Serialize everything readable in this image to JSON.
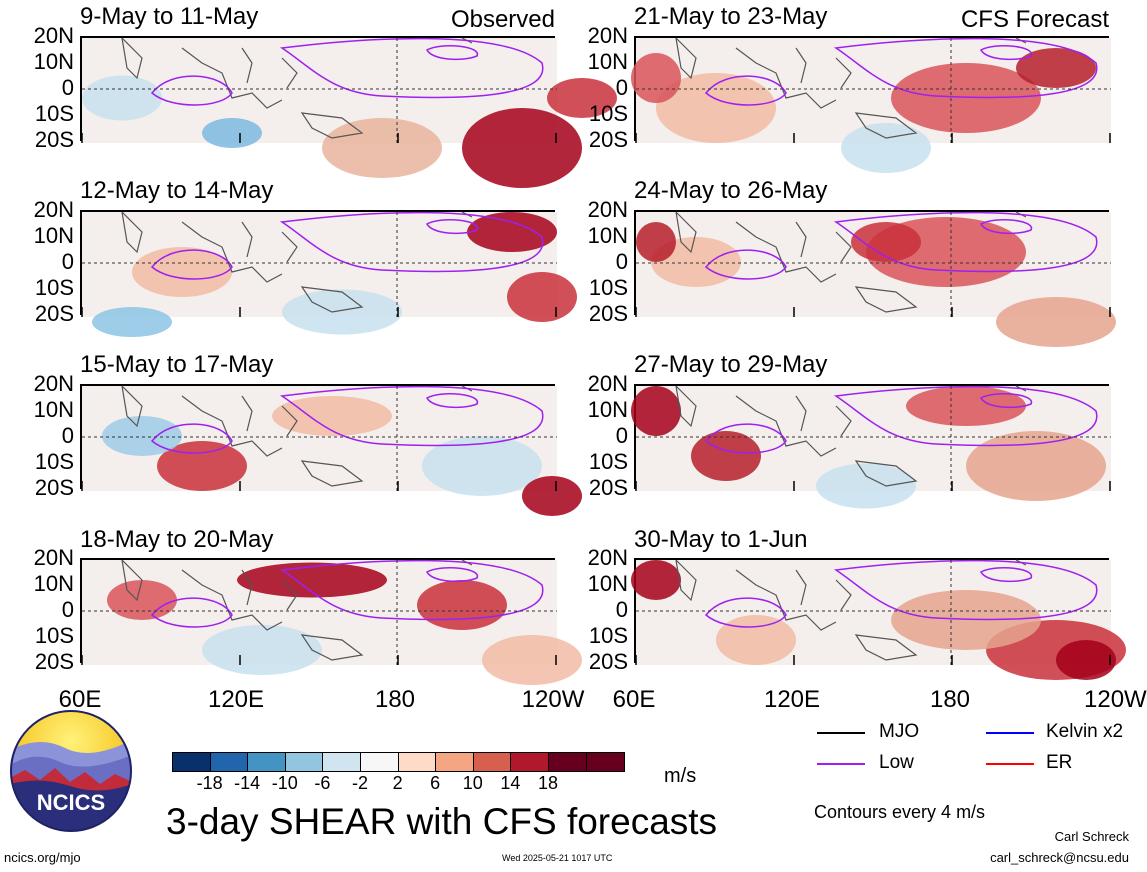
{
  "panels": [
    {
      "title": "9-May to 11-May",
      "tag": "Observed",
      "heat": [
        [
          440,
          110,
          120,
          80,
          "#a5001a"
        ],
        [
          500,
          60,
          70,
          40,
          "#c9303b"
        ],
        [
          150,
          95,
          60,
          30,
          "#7cb8e0"
        ],
        [
          300,
          110,
          120,
          60,
          "#e8b49c"
        ],
        [
          40,
          60,
          80,
          45,
          "#c7e0ef"
        ]
      ]
    },
    {
      "title": "21-May to 23-May",
      "tag": "CFS Forecast",
      "heat": [
        [
          330,
          60,
          150,
          70,
          "#d8535a"
        ],
        [
          420,
          30,
          80,
          40,
          "#b61e2a"
        ],
        [
          80,
          70,
          120,
          70,
          "#f1bba4"
        ],
        [
          250,
          110,
          90,
          50,
          "#c7e0ef"
        ],
        [
          20,
          40,
          50,
          50,
          "#d8535a"
        ]
      ]
    },
    {
      "title": "12-May to 14-May",
      "tag": "",
      "heat": [
        [
          430,
          20,
          90,
          40,
          "#a5001a"
        ],
        [
          460,
          85,
          70,
          50,
          "#c9303b"
        ],
        [
          100,
          60,
          100,
          50,
          "#f1bba4"
        ],
        [
          260,
          100,
          120,
          45,
          "#c7e0ef"
        ],
        [
          50,
          110,
          80,
          30,
          "#8cc4e4"
        ]
      ]
    },
    {
      "title": "24-May to 26-May",
      "tag": "",
      "heat": [
        [
          310,
          40,
          160,
          70,
          "#d8535a"
        ],
        [
          250,
          30,
          70,
          40,
          "#c9303b"
        ],
        [
          60,
          50,
          90,
          50,
          "#f1bba4"
        ],
        [
          420,
          110,
          120,
          50,
          "#e5a48e"
        ],
        [
          20,
          30,
          40,
          40,
          "#b61e2a"
        ]
      ]
    },
    {
      "title": "15-May to 17-May",
      "tag": "",
      "heat": [
        [
          120,
          80,
          90,
          50,
          "#c9303b"
        ],
        [
          400,
          80,
          120,
          60,
          "#c7e0ef"
        ],
        [
          250,
          30,
          120,
          40,
          "#f1bba4"
        ],
        [
          470,
          110,
          60,
          40,
          "#a5001a"
        ],
        [
          60,
          50,
          80,
          40,
          "#9ccbe6"
        ]
      ]
    },
    {
      "title": "27-May to 29-May",
      "tag": "",
      "heat": [
        [
          20,
          25,
          50,
          50,
          "#a5001a"
        ],
        [
          330,
          20,
          120,
          40,
          "#d8535a"
        ],
        [
          90,
          70,
          70,
          50,
          "#b61e2a"
        ],
        [
          400,
          80,
          140,
          70,
          "#e5a48e"
        ],
        [
          230,
          100,
          100,
          45,
          "#c7e0ef"
        ]
      ]
    },
    {
      "title": "18-May to 20-May",
      "tag": "",
      "heat": [
        [
          230,
          20,
          150,
          35,
          "#a5001a"
        ],
        [
          380,
          45,
          90,
          50,
          "#c9303b"
        ],
        [
          60,
          40,
          70,
          40,
          "#d8535a"
        ],
        [
          180,
          90,
          120,
          50,
          "#c7e0ef"
        ],
        [
          450,
          100,
          100,
          50,
          "#f1bba4"
        ]
      ]
    },
    {
      "title": "30-May to 1-Jun",
      "tag": "",
      "heat": [
        [
          20,
          20,
          50,
          40,
          "#a5001a"
        ],
        [
          420,
          90,
          140,
          60,
          "#c9303b"
        ],
        [
          450,
          100,
          60,
          40,
          "#a5001a"
        ],
        [
          330,
          60,
          150,
          60,
          "#e5a48e"
        ],
        [
          120,
          80,
          80,
          50,
          "#f1bba4"
        ]
      ]
    }
  ],
  "lat_labels": [
    "20N",
    "10N",
    "0",
    "10S",
    "20S"
  ],
  "lon_labels": [
    "60E",
    "120E",
    "180",
    "120W",
    "60E",
    "120E",
    "180",
    "120W"
  ],
  "legend": [
    {
      "label": "MJO",
      "color": "#000000"
    },
    {
      "label": "Kelvin x2",
      "color": "#0000ff"
    },
    {
      "label": "Low",
      "color": "#a020f0"
    },
    {
      "label": "ER",
      "color": "#ff0000"
    }
  ],
  "contours_note": "Contours every 4 m/s",
  "colorbar": {
    "colors": [
      "#08306b",
      "#2166ac",
      "#4393c3",
      "#92c5de",
      "#d1e5f0",
      "#f7f7f7",
      "#fddbc7",
      "#f4a582",
      "#d6604d",
      "#b2182b",
      "#67001f",
      "#67001f"
    ],
    "ticks": [
      "-18",
      "-14",
      "-10",
      "-6",
      "-2",
      "2",
      "6",
      "10",
      "14",
      "18"
    ],
    "unit": "m/s"
  },
  "logo_text": "NCICS",
  "main_title": "3-day SHEAR with CFS forecasts",
  "footer_left": "ncics.org/mjo",
  "footer_center": "Wed 2025-05-21 1017 UTC",
  "footer_right_name": "Carl Schreck",
  "footer_right_email": "carl_schreck@ncsu.edu",
  "colors": {
    "mjo": "#000000",
    "kelvin": "#0000ff",
    "low": "#a020f0",
    "er": "#ff0000"
  }
}
